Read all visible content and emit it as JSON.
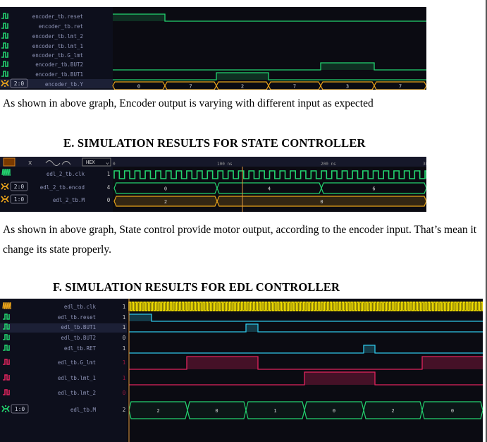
{
  "panel1": {
    "signals": [
      {
        "name": "encoder_tb.reset",
        "icon": "bit"
      },
      {
        "name": "encoder_tb.ret",
        "icon": "bit"
      },
      {
        "name": "encoder_tb.lmt_2",
        "icon": "bit"
      },
      {
        "name": "encoder_tb.lmt_1",
        "icon": "bit"
      },
      {
        "name": "encoder_tb.G_lmt",
        "icon": "bit"
      },
      {
        "name": "encoder_tb.BUT2",
        "icon": "bit"
      },
      {
        "name": "encoder_tb.BUT1",
        "icon": "bit"
      },
      {
        "name": "encoder_tb.Y",
        "icon": "bus",
        "width": "2:0"
      }
    ],
    "bus_values": [
      "0",
      "7",
      "2",
      "7",
      "3",
      "7"
    ]
  },
  "caption1": "As shown in above graph, Encoder output is varying with different input as expected",
  "heading_e": "E.   SIMULATION RESULTS FOR STATE CONTROLLER",
  "panel2": {
    "toolbar": {
      "radix": "HEX",
      "ticks": [
        "0",
        "100 ns",
        "200 ns",
        "300"
      ]
    },
    "signals": [
      {
        "name": "edl_2_tb.clk",
        "icon": "clock",
        "value": "1"
      },
      {
        "name": "edl_2_tb.encod",
        "icon": "bus",
        "width": "2:0",
        "value": "4"
      },
      {
        "name": "edl_2_tb.M",
        "icon": "bus",
        "width": "1:0",
        "value": "0"
      }
    ],
    "encod_values": [
      "0",
      "4",
      "6"
    ],
    "m_values": [
      "2",
      "0"
    ]
  },
  "caption2": "As shown in above graph, State control provide motor output, according to the encoder input. That’s mean it change its state properly.",
  "heading_f": "F.   SIMULATION RESULTS FOR EDL CONTROLLER",
  "panel3": {
    "signals": [
      {
        "name": "edl_tb.clk",
        "icon": "clock",
        "value": "1"
      },
      {
        "name": "edl_tb.reset",
        "icon": "bit",
        "value": "1"
      },
      {
        "name": "edl_tb.BUT1",
        "icon": "bit",
        "value": "1"
      },
      {
        "name": "edl_tb.BUT2",
        "icon": "bit",
        "value": "0"
      },
      {
        "name": "edl_tb.RET",
        "icon": "bit",
        "value": "1"
      },
      {
        "name": "edl_tb.G_lmt",
        "icon": "bit",
        "value": "1"
      },
      {
        "name": "edl_tb.lmt_1",
        "icon": "bit",
        "value": "1"
      },
      {
        "name": "edl_tb.lmt_2",
        "icon": "bit",
        "value": "0"
      },
      {
        "name": "edl_tb.M",
        "icon": "bus",
        "width": "1:0",
        "value": "2"
      }
    ],
    "m_values": [
      "2",
      "0",
      "1",
      "0",
      "2",
      "0"
    ]
  },
  "colors": {
    "green": "#23d36f",
    "cyan": "#2fc6e8",
    "red": "#e0245e",
    "amber": "#e8a21a",
    "yellow": "#f5e100",
    "panel": "#0b0b12"
  }
}
